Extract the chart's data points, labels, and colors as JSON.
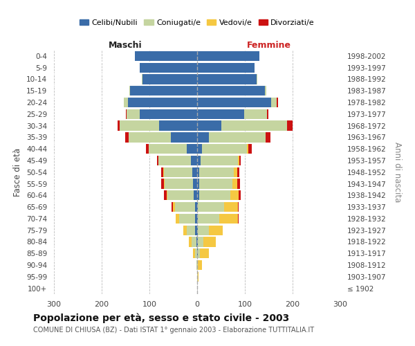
{
  "age_groups": [
    "100+",
    "95-99",
    "90-94",
    "85-89",
    "80-84",
    "75-79",
    "70-74",
    "65-69",
    "60-64",
    "55-59",
    "50-54",
    "45-49",
    "40-44",
    "35-39",
    "30-34",
    "25-29",
    "20-24",
    "15-19",
    "10-14",
    "5-9",
    "0-4"
  ],
  "birth_years": [
    "≤ 1902",
    "1903-1907",
    "1908-1912",
    "1913-1917",
    "1918-1922",
    "1923-1927",
    "1928-1932",
    "1933-1937",
    "1938-1942",
    "1943-1947",
    "1948-1952",
    "1953-1957",
    "1958-1962",
    "1963-1967",
    "1968-1972",
    "1973-1977",
    "1978-1982",
    "1983-1987",
    "1988-1992",
    "1993-1997",
    "1998-2002"
  ],
  "males": {
    "celibe": [
      0,
      0,
      0,
      0,
      2,
      4,
      5,
      5,
      7,
      8,
      10,
      13,
      22,
      55,
      80,
      120,
      145,
      140,
      115,
      120,
      130
    ],
    "coniugato": [
      0,
      0,
      1,
      5,
      10,
      18,
      32,
      42,
      55,
      60,
      60,
      68,
      80,
      88,
      82,
      28,
      8,
      2,
      1,
      0,
      0
    ],
    "vedovo": [
      0,
      0,
      1,
      4,
      6,
      7,
      8,
      4,
      2,
      1,
      1,
      0,
      0,
      0,
      0,
      0,
      0,
      0,
      0,
      0,
      0
    ],
    "divorziato": [
      0,
      0,
      0,
      0,
      0,
      0,
      0,
      3,
      5,
      6,
      4,
      3,
      5,
      8,
      5,
      2,
      1,
      0,
      0,
      0,
      0
    ]
  },
  "females": {
    "nubile": [
      0,
      0,
      0,
      1,
      1,
      2,
      2,
      2,
      4,
      4,
      5,
      7,
      10,
      25,
      50,
      98,
      155,
      142,
      125,
      120,
      130
    ],
    "coniugata": [
      0,
      1,
      2,
      5,
      12,
      22,
      45,
      55,
      65,
      70,
      72,
      78,
      95,
      118,
      138,
      48,
      12,
      3,
      1,
      0,
      0
    ],
    "vedova": [
      0,
      2,
      8,
      18,
      26,
      30,
      38,
      28,
      18,
      10,
      7,
      3,
      2,
      0,
      0,
      0,
      0,
      0,
      0,
      0,
      0
    ],
    "divorziata": [
      0,
      0,
      0,
      0,
      0,
      0,
      2,
      2,
      5,
      6,
      5,
      4,
      8,
      10,
      12,
      3,
      2,
      0,
      0,
      0,
      0
    ]
  },
  "colors": {
    "celibe": "#3a6ca8",
    "coniugato": "#c5d5a0",
    "vedovo": "#f5c842",
    "divorziato": "#cc1111"
  },
  "xlim": 300,
  "xticks": [
    -300,
    -200,
    -100,
    0,
    100,
    200,
    300
  ],
  "title": "Popolazione per età, sesso e stato civile - 2003",
  "subtitle": "COMUNE DI CHIUSA (BZ) - Dati ISTAT 1° gennaio 2003 - Elaborazione TUTTITALIA.IT",
  "xlabel_left": "Maschi",
  "xlabel_right": "Femmine",
  "ylabel_left": "Fasce di età",
  "ylabel_right": "Anni di nascita",
  "legend_labels": [
    "Celibi/Nubili",
    "Coniugati/e",
    "Vedovi/e",
    "Divorziati/e"
  ],
  "background_color": "#ffffff",
  "grid_color": "#bbbbbb",
  "maschi_color": "#222222",
  "femmine_color": "#cc2222",
  "centerline_color": "#aaaaaa"
}
